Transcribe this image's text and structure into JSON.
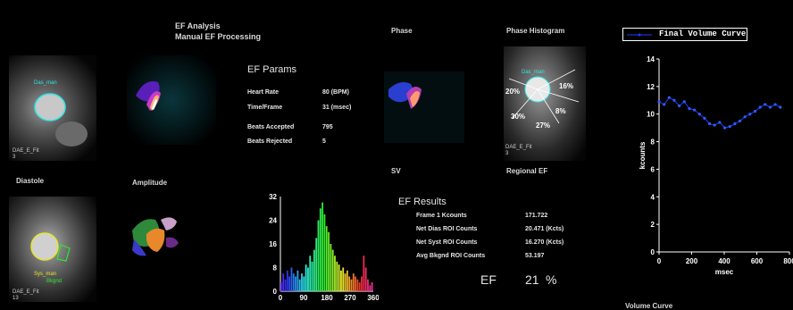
{
  "header": {
    "title_line1": "EF Analysis",
    "title_line2": "Manual EF Processing"
  },
  "panels": {
    "das_label": "Das_man",
    "top_left_caption": "DAE_E_Fit",
    "top_left_frame": "3",
    "diastole": "Diastole",
    "amplitude": "Amplitude",
    "phase": "Phase",
    "phase_histogram": "Phase Histogram",
    "sv": "SV",
    "regional_ef": "Regional EF",
    "sys_label": "Sys_man",
    "bkgnd_label": "Bkgnd",
    "bottom_left_caption": "DAE_E_Fit",
    "bottom_left_frame": "13",
    "regional_caption": "DAE_E_Fit",
    "regional_frame": "3",
    "regional_das": "Das_man",
    "regional_pct": [
      "20%",
      "16%",
      "30%",
      "8%",
      "27%"
    ]
  },
  "ef_params": {
    "title": "EF Params",
    "rows": [
      {
        "label": "Heart Rate",
        "value": "80 (BPM)"
      },
      {
        "label": "Time/Frame",
        "value": "31 (msec)"
      },
      {
        "label": "Beats Accepted",
        "value": "795"
      },
      {
        "label": "Beats Rejected",
        "value": "5"
      }
    ]
  },
  "ef_results": {
    "title": "EF Results",
    "rows": [
      {
        "label": "Frame 1 Kcounts",
        "value": "171.722"
      },
      {
        "label": "Net Dias ROI Counts",
        "value": "20.471 (Kcts)"
      },
      {
        "label": "Net Syst ROI Counts",
        "value": "16.270 (Kcts)"
      },
      {
        "label": "Avg Bkgnd ROI Counts",
        "value": "53.197"
      }
    ],
    "ef_label": "EF",
    "ef_value": "21",
    "ef_unit": "%"
  },
  "volume_curve": {
    "legend": "Final Volume Curve",
    "title_bottom": "Volume Curve",
    "colors": {
      "line": "#1e3cff",
      "axis": "#ffffff"
    }
  },
  "chart_data": [
    {
      "type": "bar",
      "title": "",
      "xlabel": "",
      "ylabel": "",
      "x_ticks": [
        "0",
        "90",
        "180",
        "270",
        "360"
      ],
      "y_ticks": [
        "0",
        "8",
        "16",
        "24",
        "32"
      ],
      "xlim": [
        0,
        360
      ],
      "ylim": [
        0,
        32
      ],
      "x": [
        4,
        12,
        20,
        28,
        36,
        44,
        52,
        60,
        68,
        76,
        84,
        92,
        100,
        108,
        116,
        124,
        132,
        140,
        148,
        156,
        164,
        172,
        180,
        188,
        196,
        204,
        212,
        220,
        228,
        236,
        244,
        252,
        260,
        268,
        276,
        284,
        292,
        300,
        308,
        316,
        324,
        332,
        340,
        348,
        356
      ],
      "values": [
        3,
        6,
        4,
        7,
        5,
        8,
        6,
        5,
        7,
        4,
        6,
        5,
        9,
        8,
        12,
        10,
        14,
        18,
        24,
        28,
        30,
        26,
        22,
        20,
        16,
        14,
        12,
        10,
        9,
        7,
        8,
        6,
        7,
        5,
        4,
        6,
        5,
        4,
        3,
        5,
        12,
        8,
        4,
        2,
        3
      ]
    },
    {
      "type": "line",
      "title": "",
      "legend": [
        "Final Volume Curve"
      ],
      "xlabel": "msec",
      "ylabel": "kcounts",
      "xlim": [
        0,
        800
      ],
      "ylim": [
        0,
        14
      ],
      "x_ticks": [
        "0",
        "200",
        "400",
        "600",
        "800"
      ],
      "y_ticks": [
        "0",
        "2",
        "4",
        "6",
        "8",
        "10",
        "12",
        "14"
      ],
      "series": [
        {
          "name": "Final Volume Curve",
          "x": [
            0,
            31,
            62,
            93,
            124,
            155,
            186,
            217,
            248,
            279,
            310,
            341,
            372,
            403,
            434,
            465,
            496,
            527,
            558,
            589,
            620,
            651,
            682,
            713,
            744
          ],
          "y": [
            10.9,
            10.7,
            11.2,
            11.0,
            10.6,
            10.9,
            10.4,
            10.3,
            10.0,
            9.7,
            9.3,
            9.2,
            9.4,
            9.0,
            9.1,
            9.3,
            9.5,
            9.8,
            10.0,
            10.2,
            10.5,
            10.7,
            10.5,
            10.7,
            10.5
          ]
        }
      ]
    }
  ]
}
